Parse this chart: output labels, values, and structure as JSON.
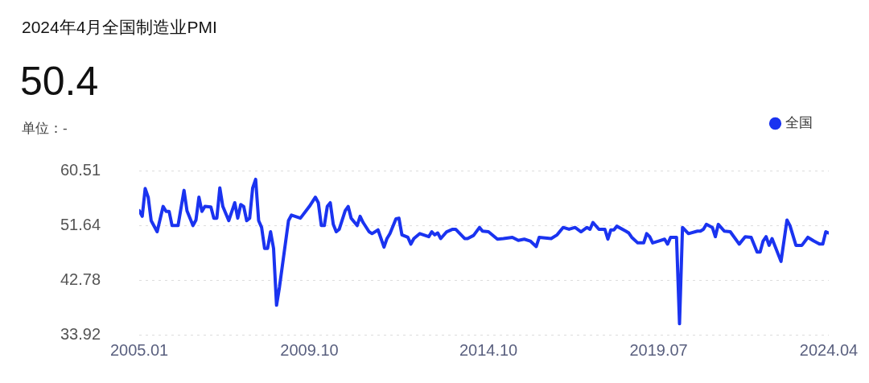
{
  "chart_data": {
    "type": "line",
    "title": "2024年4月全国制造业PMI",
    "subtitle": "50.4",
    "annotations": [
      "单位：-"
    ],
    "x": [
      "2005-01",
      "2005-02",
      "2005-03",
      "2005-04",
      "2005-05",
      "2005-07",
      "2005-09",
      "2005-10",
      "2005-11",
      "2005-12",
      "2006-02",
      "2006-04",
      "2006-05",
      "2006-07",
      "2006-08",
      "2006-09",
      "2006-10",
      "2006-11",
      "2007-01",
      "2007-02",
      "2007-03",
      "2007-04",
      "2007-05",
      "2007-07",
      "2007-09",
      "2007-10",
      "2007-11",
      "2007-12",
      "2008-01",
      "2008-02",
      "2008-03",
      "2008-04",
      "2008-05",
      "2008-06",
      "2008-07",
      "2008-08",
      "2008-09",
      "2008-10",
      "2008-11",
      "2008-12",
      "2009-03",
      "2009-04",
      "2009-07",
      "2009-10",
      "2009-12",
      "2010-01",
      "2010-02",
      "2010-03",
      "2010-04",
      "2010-05",
      "2010-06",
      "2010-07",
      "2010-08",
      "2010-10",
      "2010-11",
      "2010-12",
      "2011-02",
      "2011-03",
      "2011-04",
      "2011-06",
      "2011-07",
      "2011-09",
      "2011-11",
      "2011-12",
      "2012-01",
      "2012-03",
      "2012-04",
      "2012-05",
      "2012-07",
      "2012-08",
      "2012-09",
      "2012-11",
      "2013-02",
      "2013-03",
      "2013-04",
      "2013-05",
      "2013-06",
      "2013-08",
      "2013-10",
      "2013-11",
      "2014-02",
      "2014-03",
      "2014-05",
      "2014-07",
      "2014-08",
      "2014-10",
      "2015-01",
      "2015-03",
      "2015-06",
      "2015-08",
      "2015-10",
      "2015-12",
      "2016-02",
      "2016-03",
      "2016-07",
      "2016-09",
      "2016-11",
      "2017-01",
      "2017-03",
      "2017-05",
      "2017-07",
      "2017-08",
      "2017-09",
      "2017-11",
      "2018-01",
      "2018-02",
      "2018-03",
      "2018-04",
      "2018-05",
      "2018-08",
      "2018-09",
      "2018-10",
      "2018-12",
      "2019-02",
      "2019-03",
      "2019-04",
      "2019-05",
      "2019-07",
      "2019-09",
      "2019-10",
      "2019-11",
      "2020-01",
      "2020-02",
      "2020-03",
      "2020-05",
      "2020-08",
      "2020-09",
      "2020-10",
      "2020-11",
      "2021-01",
      "2021-02",
      "2021-03",
      "2021-05",
      "2021-07",
      "2021-10",
      "2021-12",
      "2022-02",
      "2022-04",
      "2022-05",
      "2022-06",
      "2022-07",
      "2022-08",
      "2022-09",
      "2022-12",
      "2023-02",
      "2023-03",
      "2023-05",
      "2023-07",
      "2023-09",
      "2023-11",
      "2024-01",
      "2024-02",
      "2024-03",
      "2024-04"
    ],
    "series": [
      {
        "name": "全国",
        "color": "#1a33f0",
        "values": [
          54.0,
          53.1,
          57.6,
          56.2,
          52.4,
          50.6,
          54.7,
          53.9,
          53.9,
          51.6,
          51.6,
          57.3,
          54.0,
          51.6,
          52.5,
          56.2,
          53.9,
          54.7,
          54.6,
          52.8,
          52.8,
          57.7,
          54.7,
          52.4,
          55.3,
          52.8,
          55.0,
          54.7,
          52.4,
          52.8,
          57.7,
          59.1,
          52.4,
          51.3,
          47.9,
          47.9,
          50.6,
          47.9,
          38.7,
          41.7,
          52.4,
          53.3,
          52.8,
          54.7,
          56.2,
          55.3,
          51.6,
          51.6,
          54.7,
          55.3,
          51.8,
          50.6,
          51.0,
          54.0,
          54.7,
          52.8,
          51.6,
          53.1,
          52.1,
          50.6,
          50.3,
          50.9,
          48.1,
          49.5,
          50.3,
          52.7,
          52.8,
          50.1,
          49.7,
          48.6,
          49.5,
          50.3,
          49.8,
          50.6,
          50.1,
          50.4,
          49.5,
          50.6,
          51.0,
          51.0,
          49.5,
          49.5,
          50.0,
          51.3,
          50.7,
          50.6,
          49.4,
          49.5,
          49.7,
          49.2,
          49.4,
          49.1,
          48.2,
          49.7,
          49.5,
          50.1,
          51.3,
          51.0,
          51.3,
          50.6,
          51.3,
          51.0,
          52.1,
          51.0,
          51.0,
          49.4,
          50.9,
          50.9,
          51.5,
          50.7,
          50.4,
          49.7,
          48.8,
          48.8,
          50.3,
          49.8,
          48.8,
          49.1,
          49.4,
          48.6,
          49.7,
          49.7,
          35.7,
          51.3,
          50.3,
          50.7,
          50.7,
          51.0,
          51.8,
          51.3,
          49.8,
          51.8,
          50.7,
          50.6,
          48.6,
          49.8,
          49.7,
          47.3,
          47.3,
          49.1,
          49.8,
          48.4,
          49.5,
          45.8,
          52.5,
          51.6,
          48.4,
          48.4,
          49.7,
          49.1,
          48.6,
          48.6,
          50.6,
          50.4
        ]
      }
    ],
    "xlim": [
      "2005-01",
      "2024-04"
    ],
    "xticks": [
      {
        "value": "2005-01",
        "label": "2005.01"
      },
      {
        "value": "2009-10",
        "label": "2009.10"
      },
      {
        "value": "2014-10",
        "label": "2014.10"
      },
      {
        "value": "2019-07",
        "label": "2019.07"
      },
      {
        "value": "2024-04",
        "label": "2024.04"
      }
    ],
    "ylim": [
      33.92,
      60.51
    ],
    "yticks": [
      33.92,
      42.78,
      51.64,
      60.51
    ],
    "grid": "y",
    "legend": "top right",
    "marker": "none",
    "line_style": "solid"
  }
}
